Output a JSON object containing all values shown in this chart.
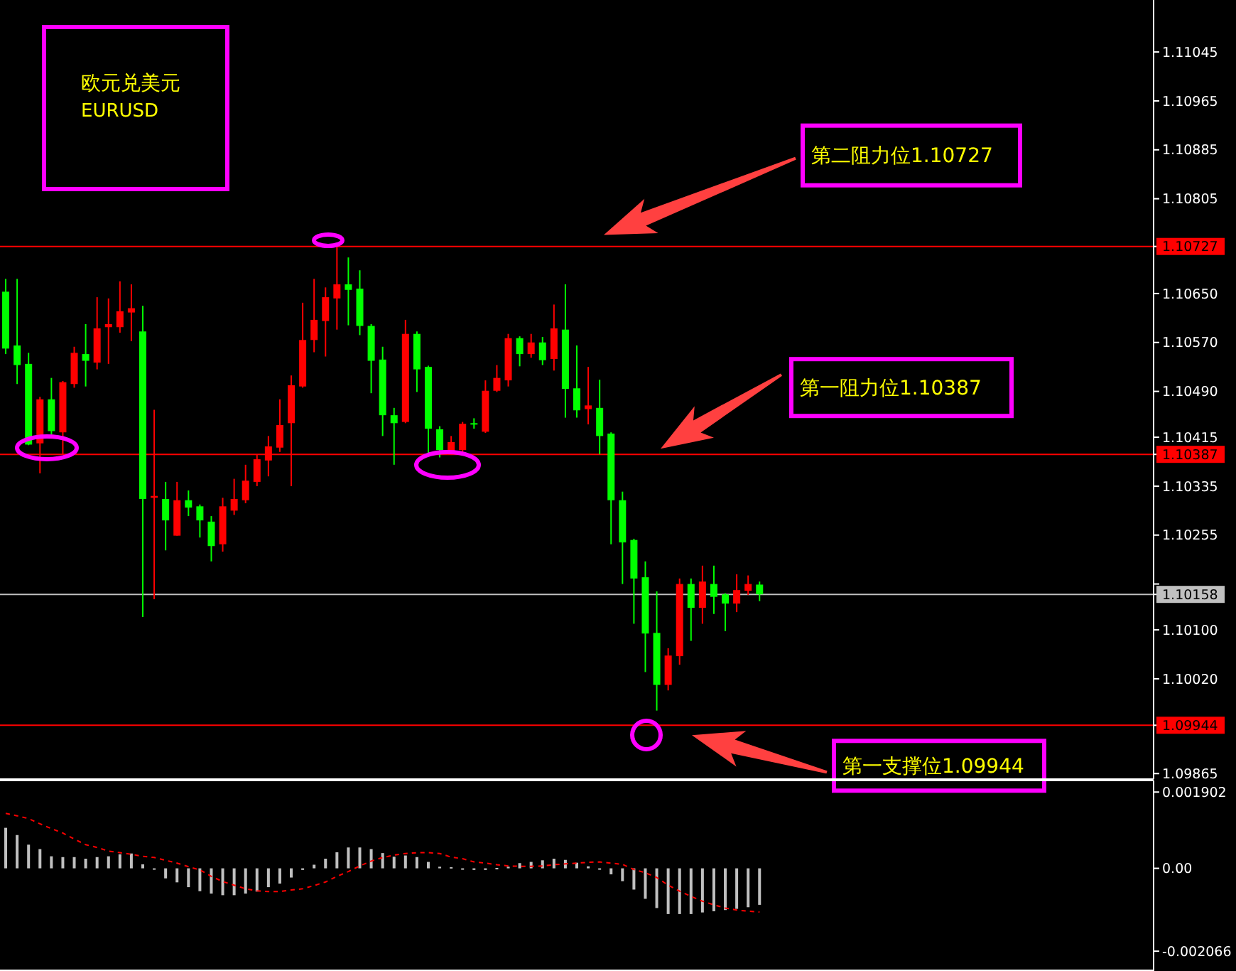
{
  "chart_data": [
    {
      "type": "candlestick",
      "title": "欧元兑美元",
      "subtitle": "EURUSD",
      "categories": [
        null,
        null,
        null,
        null,
        null,
        null,
        null,
        null,
        null,
        null,
        null,
        null,
        null,
        null,
        null,
        null,
        null,
        null,
        null,
        null,
        null,
        null,
        null,
        null,
        null,
        null,
        null,
        null,
        null,
        null,
        null,
        null,
        null,
        null,
        null,
        null,
        null,
        null,
        null,
        null,
        null,
        null,
        null,
        null,
        null,
        null,
        null,
        null,
        null,
        null,
        null,
        null,
        null,
        null,
        null,
        null,
        null,
        null,
        null,
        null,
        null,
        null,
        null,
        null,
        null,
        null,
        null,
        null,
        null,
        null,
        null,
        null,
        null,
        null,
        null,
        null,
        null,
        null,
        null,
        null,
        null,
        null,
        null,
        null,
        null,
        null,
        null,
        null,
        null,
        null,
        null,
        null,
        null,
        null,
        null,
        null,
        null,
        null,
        null,
        null,
        null
      ],
      "ohlc": [
        [
          1.10653,
          1.10674,
          1.10551,
          1.1056
        ],
        [
          1.10565,
          1.10674,
          1.10502,
          1.10533
        ],
        [
          1.10535,
          1.10553,
          1.10402,
          1.10403
        ],
        [
          1.10405,
          1.10481,
          1.10356,
          1.10477
        ],
        [
          1.10477,
          1.10512,
          1.10419,
          1.10425
        ],
        [
          1.10423,
          1.10507,
          1.10386,
          1.10505
        ],
        [
          1.10502,
          1.10563,
          1.10496,
          1.10553
        ],
        [
          1.10551,
          1.106,
          1.10498,
          1.1054
        ],
        [
          1.10537,
          1.10644,
          1.10526,
          1.10593
        ],
        [
          1.10595,
          1.10642,
          1.10535,
          1.106
        ],
        [
          1.10595,
          1.1067,
          1.10586,
          1.10621
        ],
        [
          1.10619,
          1.10665,
          1.10572,
          1.10626
        ],
        [
          1.10588,
          1.1063,
          1.10121,
          1.10314
        ],
        [
          1.10316,
          1.1046,
          1.1015,
          1.10319
        ],
        [
          1.10314,
          1.10342,
          1.1023,
          1.10279
        ],
        [
          1.10254,
          1.10342,
          1.10254,
          1.10312
        ],
        [
          1.10312,
          1.10328,
          1.10286,
          1.103
        ],
        [
          1.10302,
          1.10305,
          1.10251,
          1.10279
        ],
        [
          1.10277,
          1.10286,
          1.10212,
          1.10237
        ],
        [
          1.1024,
          1.10316,
          1.10228,
          1.10302
        ],
        [
          1.10295,
          1.10347,
          1.10288,
          1.10314
        ],
        [
          1.10312,
          1.1037,
          1.10307,
          1.10344
        ],
        [
          1.10342,
          1.10386,
          1.10335,
          1.10379
        ],
        [
          1.10377,
          1.10417,
          1.10351,
          1.104
        ],
        [
          1.10398,
          1.10477,
          1.10391,
          1.10435
        ],
        [
          1.10438,
          1.10516,
          1.10335,
          1.105
        ],
        [
          1.10498,
          1.10635,
          1.10496,
          1.10574
        ],
        [
          1.10574,
          1.10674,
          1.10554,
          1.10607
        ],
        [
          1.10605,
          1.1066,
          1.10547,
          1.10644
        ],
        [
          1.10642,
          1.10727,
          1.10591,
          1.10665
        ],
        [
          1.10665,
          1.10709,
          1.10598,
          1.10656
        ],
        [
          1.10658,
          1.10688,
          1.10582,
          1.10597
        ],
        [
          1.10597,
          1.106,
          1.10487,
          1.1054
        ],
        [
          1.10542,
          1.10563,
          1.10417,
          1.10451
        ],
        [
          1.10451,
          1.10463,
          1.1037,
          1.10438
        ],
        [
          1.1044,
          1.10607,
          1.10438,
          1.10584
        ],
        [
          1.10584,
          1.10588,
          1.10489,
          1.10526
        ],
        [
          1.1053,
          1.10532,
          1.10386,
          1.10429
        ],
        [
          1.10428,
          1.10433,
          1.10382,
          1.10394
        ],
        [
          1.10391,
          1.10417,
          1.10386,
          1.10407
        ],
        [
          1.10394,
          1.1044,
          1.10391,
          1.10437
        ],
        [
          1.10438,
          1.10446,
          1.10429,
          1.10437
        ],
        [
          1.10424,
          1.10508,
          1.10422,
          1.10491
        ],
        [
          1.10491,
          1.10533,
          1.10489,
          1.10512
        ],
        [
          1.10508,
          1.10584,
          1.10498,
          1.10577
        ],
        [
          1.10577,
          1.1058,
          1.10531,
          1.10551
        ],
        [
          1.10551,
          1.10584,
          1.10545,
          1.1057
        ],
        [
          1.1057,
          1.10579,
          1.10533,
          1.10541
        ],
        [
          1.10543,
          1.10632,
          1.10524,
          1.10593
        ],
        [
          1.10591,
          1.10665,
          1.10447,
          1.10494
        ],
        [
          1.10495,
          1.10565,
          1.10447,
          1.10459
        ],
        [
          1.10461,
          1.1053,
          1.10436,
          1.10467
        ],
        [
          1.10463,
          1.10509,
          1.10387,
          1.10417
        ],
        [
          1.10421,
          1.10423,
          1.1024,
          1.10312
        ],
        [
          1.10312,
          1.10326,
          1.10175,
          1.10243
        ],
        [
          1.10247,
          1.10249,
          1.1011,
          1.10184
        ],
        [
          1.10186,
          1.10212,
          1.10031,
          1.10094
        ],
        [
          1.10095,
          1.10163,
          1.09968,
          1.1001
        ],
        [
          1.1001,
          1.1007,
          1.10001,
          1.10058
        ],
        [
          1.10057,
          1.10184,
          1.10043,
          1.10175
        ],
        [
          1.10175,
          1.10184,
          1.10082,
          1.10136
        ],
        [
          1.10136,
          1.10205,
          1.1011,
          1.10179
        ],
        [
          1.10175,
          1.10205,
          1.10126,
          1.10154
        ],
        [
          1.10158,
          1.1016,
          1.10098,
          1.10143
        ],
        [
          1.10143,
          1.10191,
          1.10129,
          1.10165
        ],
        [
          1.10164,
          1.10189,
          1.10157,
          1.10175
        ],
        [
          1.10174,
          1.10179,
          1.10147,
          1.10158
        ],
        null,
        null,
        null,
        null,
        null,
        null,
        null,
        null,
        null,
        null,
        null,
        null,
        null,
        null,
        null,
        null,
        null,
        null,
        null,
        null,
        null,
        null,
        null,
        null,
        null,
        null,
        null,
        null,
        null,
        null,
        null,
        null,
        null,
        null
      ],
      "colors": [
        "#00ff00",
        "#00ff00",
        "#00ff00",
        "#ff0000",
        "#00ff00",
        "#ff0000",
        "#ff0000",
        "#00ff00",
        "#ff0000",
        "#ff0000",
        "#ff0000",
        "#ff0000",
        "#00ff00",
        "#ff0000",
        "#00ff00",
        "#ff0000",
        "#00ff00",
        "#00ff00",
        "#00ff00",
        "#ff0000",
        "#ff0000",
        "#ff0000",
        "#ff0000",
        "#ff0000",
        "#ff0000",
        "#ff0000",
        "#ff0000",
        "#ff0000",
        "#ff0000",
        "#ff0000",
        "#00ff00",
        "#00ff00",
        "#00ff00",
        "#00ff00",
        "#00ff00",
        "#ff0000",
        "#00ff00",
        "#00ff00",
        "#00ff00",
        "#ff0000",
        "#ff0000",
        "#00ff00",
        "#ff0000",
        "#ff0000",
        "#ff0000",
        "#00ff00",
        "#ff0000",
        "#00ff00",
        "#ff0000",
        "#00ff00",
        "#00ff00",
        "#ff0000",
        "#00ff00",
        "#00ff00",
        "#00ff00",
        "#00ff00",
        "#00ff00",
        "#00ff00",
        "#ff0000",
        "#ff0000",
        "#00ff00",
        "#ff0000",
        "#00ff00",
        "#00ff00",
        "#ff0000",
        "#ff0000",
        "#00ff00",
        null,
        null,
        null,
        null,
        null,
        null,
        null,
        null,
        null,
        null,
        null,
        null,
        null,
        null,
        null,
        null,
        null,
        null,
        null,
        null,
        null,
        null,
        null,
        null,
        null,
        null,
        null,
        null,
        null,
        null,
        null,
        null,
        null,
        null
      ],
      "ylim": [
        1.09856,
        1.1113
      ],
      "yticks": [
        1.09865,
        1.09944,
        {
          "value": 1.1002,
          "label": "1.10020"
        },
        {
          "value": 1.101,
          "label": "1.10100"
        },
        1.10158,
        {
          "value": 1.10175,
          "label": null
        },
        1.10255,
        1.10335,
        1.10387,
        1.10415,
        {
          "value": 1.1049,
          "label": "1.10490"
        },
        {
          "value": 1.1057,
          "label": "1.10570"
        },
        {
          "value": 1.1065,
          "label": "1.10650"
        },
        1.10727,
        1.10805,
        1.10885,
        1.10965,
        1.11045
      ],
      "ref_lines": [
        {
          "axis": "y",
          "value": 1.10727,
          "color": "#ff0000"
        },
        {
          "axis": "y",
          "value": 1.10387,
          "color": "#ff0000"
        },
        {
          "axis": "y",
          "value": 1.10158,
          "color": "#c0c0c0"
        },
        {
          "axis": "y",
          "value": 1.09944,
          "color": "#ff0000"
        }
      ],
      "annotations": [
        "第二阻力位1.10727",
        "第一阻力位1.10387",
        "第一支撑位1.09944"
      ],
      "tick_labels": "y"
    },
    {
      "type": "bar",
      "categories": [
        null,
        null,
        null,
        null,
        null,
        null,
        null,
        null,
        null,
        null,
        null,
        null,
        null,
        null,
        null,
        null,
        null,
        null,
        null,
        null,
        null,
        null,
        null,
        null,
        null,
        null,
        null,
        null,
        null,
        null,
        null,
        null,
        null,
        null,
        null,
        null,
        null,
        null,
        null,
        null,
        null,
        null,
        null,
        null,
        null,
        null,
        null,
        null,
        null,
        null,
        null,
        null,
        null,
        null,
        null,
        null,
        null,
        null,
        null,
        null,
        null,
        null,
        null,
        null,
        null,
        null,
        null,
        null,
        null,
        null,
        null,
        null,
        null,
        null,
        null,
        null,
        null,
        null,
        null,
        null,
        null,
        null,
        null,
        null,
        null,
        null,
        null,
        null,
        null,
        null,
        null,
        null,
        null,
        null,
        null,
        null,
        null,
        null,
        null,
        null,
        null
      ],
      "series": [
        {
          "type": "bar",
          "color": "#c0c0c0",
          "values": [
            0.00101,
            0.00083,
            0.00059,
            0.00048,
            0.0003,
            0.00028,
            0.00028,
            0.00024,
            0.00028,
            0.0003,
            0.00035,
            0.00037,
            0.0001,
            -3e-05,
            -0.00025,
            -0.00035,
            -0.00047,
            -0.00057,
            -0.00063,
            -0.00067,
            -0.00067,
            -0.00063,
            -0.00058,
            -0.00047,
            -0.00038,
            -0.00023,
            -4e-05,
            9e-05,
            0.00024,
            0.0004,
            0.00052,
            0.00052,
            0.00048,
            0.00038,
            0.00029,
            0.00032,
            0.00028,
            0.00016,
            4e-05,
            3e-05,
            -3e-05,
            -4e-05,
            -4e-05,
            1e-05,
            4e-05,
            0.00013,
            0.00016,
            0.0002,
            0.00024,
            0.00021,
            0.00014,
            5e-05,
            0,
            -0.00015,
            -0.00032,
            -0.00053,
            -0.00076,
            -0.00099,
            -0.00114,
            -0.00114,
            -0.00114,
            -0.0011,
            -0.00107,
            -0.00104,
            -0.00101,
            -0.00097,
            -0.00091,
            null,
            null,
            null,
            null,
            null,
            null,
            null,
            null,
            null,
            null,
            null,
            null,
            null,
            null,
            null,
            null,
            null,
            null,
            null,
            null,
            null,
            null,
            null,
            null,
            null,
            null,
            null,
            null,
            null,
            null,
            null,
            null,
            null,
            null
          ]
        },
        {
          "type": "line",
          "color": "#ff0000",
          "line_style": "dashed",
          "values": [
            0.00137,
            0.00131,
            0.00124,
            0.00111,
            0.00099,
            0.00088,
            0.00073,
            0.00059,
            0.00052,
            0.00043,
            0.00039,
            0.00035,
            0.0003,
            0.00027,
            0.0002,
            0.00013,
            4e-05,
            -4e-05,
            -0.0002,
            -0.00033,
            -0.00042,
            -0.00051,
            -0.00056,
            -0.00058,
            -0.00058,
            -0.00054,
            -0.00051,
            -0.00043,
            -0.00034,
            -0.0002,
            -8e-05,
            6e-05,
            0.00018,
            0.00027,
            0.00033,
            0.00037,
            0.00039,
            0.00039,
            0.00037,
            0.00028,
            0.00024,
            0.00016,
            0.00013,
            9e-05,
            6e-05,
            5e-05,
            5e-05,
            6e-05,
            9e-05,
            0.00011,
            0.00013,
            0.00015,
            0.00016,
            0.00013,
            0.0001,
            -3e-05,
            -0.00011,
            -0.00023,
            -0.00042,
            -0.00057,
            -0.0007,
            -0.00082,
            -0.00091,
            -0.00099,
            -0.00104,
            -0.00107,
            -0.00109,
            null,
            null,
            null,
            null,
            null,
            null,
            null,
            null,
            null,
            null,
            null,
            null,
            null,
            null,
            null,
            null,
            null,
            null,
            null,
            null,
            null,
            null,
            null,
            null,
            null,
            null,
            null,
            null,
            null,
            null,
            null,
            null,
            null,
            null
          ]
        }
      ],
      "ylim": [
        -0.00256,
        0.00219
      ],
      "yticks": [
        -0.002066,
        {
          "value": 0,
          "label": "0.00"
        },
        0.001902
      ],
      "tick_labels": "y"
    }
  ]
}
